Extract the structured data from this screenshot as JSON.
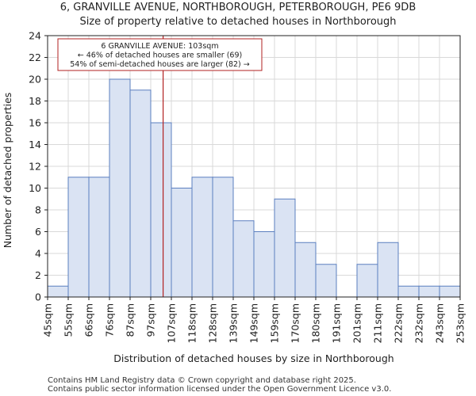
{
  "chart_data": {
    "type": "bar",
    "title": "6, GRANVILLE AVENUE, NORTHBOROUGH, PETERBOROUGH, PE6 9DB",
    "subtitle": "Size of property relative to detached houses in Northborough",
    "xlabel": "Distribution of detached houses by size in Northborough",
    "ylabel": "Number of detached properties",
    "bin_edges": [
      45,
      55,
      66,
      76,
      87,
      97,
      107,
      118,
      128,
      139,
      149,
      159,
      170,
      180,
      191,
      201,
      211,
      222,
      232,
      243,
      253
    ],
    "tick_labels": [
      "45sqm",
      "55sqm",
      "66sqm",
      "76sqm",
      "87sqm",
      "97sqm",
      "107sqm",
      "118sqm",
      "128sqm",
      "139sqm",
      "149sqm",
      "159sqm",
      "170sqm",
      "180sqm",
      "191sqm",
      "201sqm",
      "211sqm",
      "222sqm",
      "232sqm",
      "243sqm",
      "253sqm"
    ],
    "values": [
      1,
      11,
      11,
      20,
      19,
      16,
      10,
      11,
      11,
      7,
      6,
      9,
      5,
      3,
      0,
      3,
      5,
      1,
      1,
      1
    ],
    "ylim": [
      0,
      24
    ],
    "yticks": [
      0,
      2,
      4,
      6,
      8,
      10,
      12,
      14,
      16,
      18,
      20,
      22,
      24
    ],
    "grid": true,
    "bar_color": "#dae3f3",
    "bar_edge_color": "#5b7fbf",
    "marker": {
      "value": 103,
      "color": "#b22222",
      "annotation": [
        "6 GRANVILLE AVENUE: 103sqm",
        "← 46% of detached houses are smaller (69)",
        "54% of semi-detached houses are larger (82) →"
      ]
    }
  },
  "footer": {
    "line1": "Contains HM Land Registry data © Crown copyright and database right 2025.",
    "line2": "Contains public sector information licensed under the Open Government Licence v3.0."
  }
}
